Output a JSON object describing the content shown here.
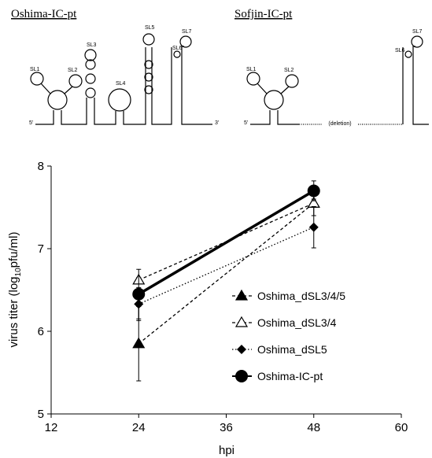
{
  "diagrams": {
    "left": {
      "title": "Oshima-IC-pt",
      "labels": [
        "SL1",
        "SL2",
        "SL3",
        "SL4",
        "SL5",
        "SL6",
        "SL7"
      ],
      "five_prime": "5'",
      "three_prime": "3'"
    },
    "right": {
      "title": "Sofjin-IC-pt",
      "labels": [
        "SL1",
        "SL2",
        "SL6",
        "SL7"
      ],
      "five_prime": "5'",
      "deletion": "(deletion)"
    }
  },
  "chart_data": {
    "type": "line",
    "x_label": "hpi",
    "y_label": {
      "before": "virus titer (log",
      "sub": "10",
      "after": "pfu/ml)"
    },
    "x": [
      24,
      48
    ],
    "xlim": [
      12,
      60
    ],
    "xticks": [
      12,
      24,
      36,
      48,
      60
    ],
    "ylim": [
      5,
      8
    ],
    "yticks": [
      5,
      6,
      7,
      8
    ],
    "series": [
      {
        "name": "Oshima_dSL3/4/5",
        "color": "#000000",
        "marker": "triangle-filled",
        "dash": "4,3",
        "values": [
          5.85,
          7.55
        ],
        "errors": [
          0.45,
          0.15
        ]
      },
      {
        "name": "Oshima_dSL3/4",
        "color": "#000000",
        "marker": "triangle-open",
        "dash": "4,3",
        "values": [
          6.62,
          7.55
        ],
        "errors": [
          0.03,
          0.05
        ]
      },
      {
        "name": "Oshima_dSL5",
        "color": "#000000",
        "marker": "diamond",
        "dash": "1.5,2.5",
        "values": [
          6.33,
          7.26
        ],
        "errors": [
          0.2,
          0.25
        ]
      },
      {
        "name": "Oshima-IC-pt",
        "color": "#000000",
        "marker": "circle",
        "dash": "none",
        "values": [
          6.45,
          7.7
        ],
        "errors": [
          0.3,
          0.12
        ]
      }
    ]
  }
}
